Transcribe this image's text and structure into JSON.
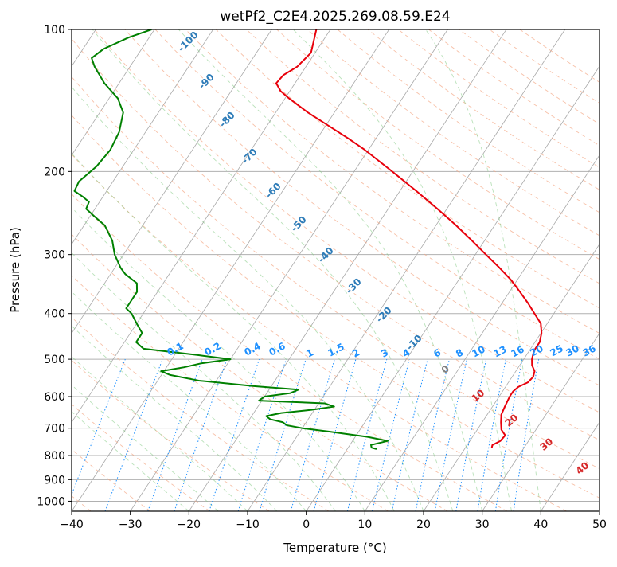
{
  "chart_data": {
    "type": "line",
    "subtype": "skew-t log-p",
    "title": "wetPf2_C2E4.2025.269.08.59.E24",
    "xlabel": "Temperature (°C)",
    "ylabel": "Pressure (hPa)",
    "xlim": [
      -40,
      50
    ],
    "ylim_pressure": [
      1050,
      100
    ],
    "x_ticks": [
      "−40",
      "−30",
      "−20",
      "−10",
      "0",
      "10",
      "20",
      "30",
      "40",
      "50"
    ],
    "y_ticks": [
      {
        "p": 100,
        "label": "100"
      },
      {
        "p": 200,
        "label": "200"
      },
      {
        "p": 300,
        "label": "300"
      },
      {
        "p": 400,
        "label": "400"
      },
      {
        "p": 500,
        "label": "500"
      },
      {
        "p": 600,
        "label": "600"
      },
      {
        "p": 700,
        "label": "700"
      },
      {
        "p": 800,
        "label": "800"
      },
      {
        "p": 900,
        "label": "900"
      },
      {
        "p": 1000,
        "label": "1000"
      }
    ],
    "grid": true,
    "skew_degC_per_decade": 53,
    "series": [
      {
        "name": "temperature",
        "color": "#e8000b",
        "points": [
          [
            770,
            24.5
          ],
          [
            760,
            24.3
          ],
          [
            745,
            25.2
          ],
          [
            725,
            25.4
          ],
          [
            705,
            24.1
          ],
          [
            680,
            23.2
          ],
          [
            655,
            22.4
          ],
          [
            630,
            22.1
          ],
          [
            600,
            21.8
          ],
          [
            585,
            21.8
          ],
          [
            572,
            22.2
          ],
          [
            560,
            23.3
          ],
          [
            545,
            23.6
          ],
          [
            530,
            23.2
          ],
          [
            515,
            22.1
          ],
          [
            500,
            21.4
          ],
          [
            480,
            20.8
          ],
          [
            460,
            20.8
          ],
          [
            440,
            20.1
          ],
          [
            420,
            18.9
          ],
          [
            400,
            16.7
          ],
          [
            380,
            14.4
          ],
          [
            360,
            11.8
          ],
          [
            340,
            9.0
          ],
          [
            320,
            5.6
          ],
          [
            300,
            1.8
          ],
          [
            280,
            -2.2
          ],
          [
            260,
            -6.6
          ],
          [
            240,
            -11.6
          ],
          [
            220,
            -17.2
          ],
          [
            200,
            -23.5
          ],
          [
            180,
            -30.6
          ],
          [
            170,
            -34.8
          ],
          [
            160,
            -39.5
          ],
          [
            150,
            -44.5
          ],
          [
            140,
            -49.3
          ],
          [
            135,
            -51.6
          ],
          [
            130,
            -53.2
          ],
          [
            125,
            -52.9
          ],
          [
            120,
            -51.5
          ],
          [
            112,
            -50.7
          ],
          [
            100,
            -52.4
          ]
        ]
      },
      {
        "name": "dewpoint",
        "color": "#008000",
        "points": [
          [
            775,
            5.0
          ],
          [
            770,
            4.0
          ],
          [
            760,
            3.6
          ],
          [
            745,
            6.0
          ],
          [
            730,
            2.0
          ],
          [
            712,
            -5.0
          ],
          [
            700,
            -10.0
          ],
          [
            690,
            -13.0
          ],
          [
            680,
            -14.0
          ],
          [
            670,
            -16.5
          ],
          [
            660,
            -17.5
          ],
          [
            650,
            -15.3
          ],
          [
            640,
            -10.5
          ],
          [
            630,
            -7.0
          ],
          [
            620,
            -9.0
          ],
          [
            612,
            -20.5
          ],
          [
            600,
            -20.0
          ],
          [
            590,
            -16.0
          ],
          [
            580,
            -15.0
          ],
          [
            570,
            -23.0
          ],
          [
            555,
            -33.0
          ],
          [
            540,
            -38.5
          ],
          [
            530,
            -40.5
          ],
          [
            520,
            -37.0
          ],
          [
            510,
            -34.5
          ],
          [
            500,
            -30.0
          ],
          [
            490,
            -36.0
          ],
          [
            475,
            -46.0
          ],
          [
            460,
            -48.0
          ],
          [
            440,
            -48.0
          ],
          [
            420,
            -50.0
          ],
          [
            400,
            -52.0
          ],
          [
            390,
            -53.5
          ],
          [
            380,
            -53.5
          ],
          [
            360,
            -53.5
          ],
          [
            345,
            -54.5
          ],
          [
            330,
            -57.5
          ],
          [
            320,
            -59.0
          ],
          [
            300,
            -61.5
          ],
          [
            280,
            -63.5
          ],
          [
            260,
            -66.5
          ],
          [
            250,
            -69.0
          ],
          [
            240,
            -71.5
          ],
          [
            232,
            -71.8
          ],
          [
            226,
            -73.5
          ],
          [
            220,
            -75.5
          ],
          [
            210,
            -75.8
          ],
          [
            195,
            -74.5
          ],
          [
            180,
            -74.0
          ],
          [
            165,
            -74.5
          ],
          [
            150,
            -76.0
          ],
          [
            140,
            -78.5
          ],
          [
            130,
            -82.5
          ],
          [
            120,
            -86.0
          ],
          [
            115,
            -87.5
          ],
          [
            110,
            -86.5
          ],
          [
            104,
            -83.5
          ],
          [
            100,
            -80.5
          ]
        ]
      }
    ],
    "mixing_ratio_labels": [
      "0.1",
      "0.2",
      "0.4",
      "0.6",
      "1",
      "1.5",
      "2",
      "3",
      "4",
      "6",
      "8",
      "10",
      "13",
      "16",
      "20",
      "25",
      "30",
      "36"
    ],
    "adiabat_labels": [
      "-100",
      "-90",
      "-80",
      "-70",
      "-60",
      "-50",
      "-40",
      "-30",
      "-20",
      "-10",
      "0",
      "10",
      "20",
      "30",
      "40"
    ],
    "annotations": [
      "0",
      "10",
      "20",
      "30",
      "40"
    ]
  }
}
